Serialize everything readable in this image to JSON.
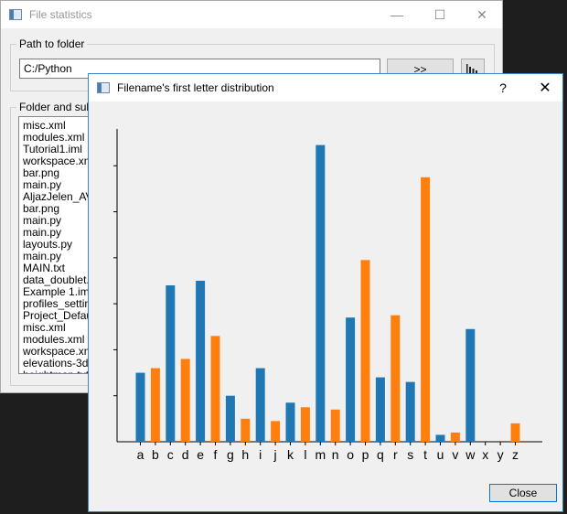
{
  "main_window": {
    "title": "File statistics",
    "controls": {
      "minimize": "—",
      "maximize": "☐",
      "close": "✕"
    },
    "path_group": {
      "label": "Path to folder",
      "value": "C:/Python"
    },
    "go_button": ">>",
    "files_group": {
      "label": "Folder and sub-f",
      "files": [
        "misc.xml",
        "modules.xml",
        "Tutorial1.iml",
        "workspace.xml",
        "bar.png",
        "main.py",
        "AljazJelen_AVL",
        "bar.png",
        "main.py",
        "main.py",
        "layouts.py",
        "main.py",
        "MAIN.txt",
        "data_doublet.t",
        "Example 1.iml",
        "profiles_setting",
        "Project_Defaul",
        "misc.xml",
        "modules.xml",
        "workspace.xml",
        "elevations-3d-s",
        "heightmap.txt"
      ]
    }
  },
  "dialog": {
    "title": "Filename's first letter distribution",
    "controls": {
      "help": "?",
      "close": "✕"
    },
    "close_button": "Close"
  },
  "chart_data": {
    "type": "bar",
    "categories": [
      "a",
      "b",
      "c",
      "d",
      "e",
      "f",
      "g",
      "h",
      "i",
      "j",
      "k",
      "l",
      "m",
      "n",
      "o",
      "p",
      "q",
      "r",
      "s",
      "t",
      "u",
      "v",
      "w",
      "x",
      "y",
      "z"
    ],
    "values": [
      15,
      16,
      34,
      18,
      35,
      23,
      10,
      5,
      16,
      4.5,
      8.5,
      7.5,
      64.5,
      7,
      27,
      39.5,
      14,
      27.5,
      13,
      57.5,
      1.5,
      2,
      24.5,
      0,
      0,
      4
    ],
    "colors": [
      "#1f77b4",
      "#ff7f0e"
    ],
    "ylim": [
      0,
      68
    ],
    "title": "",
    "xlabel": "",
    "ylabel": ""
  }
}
